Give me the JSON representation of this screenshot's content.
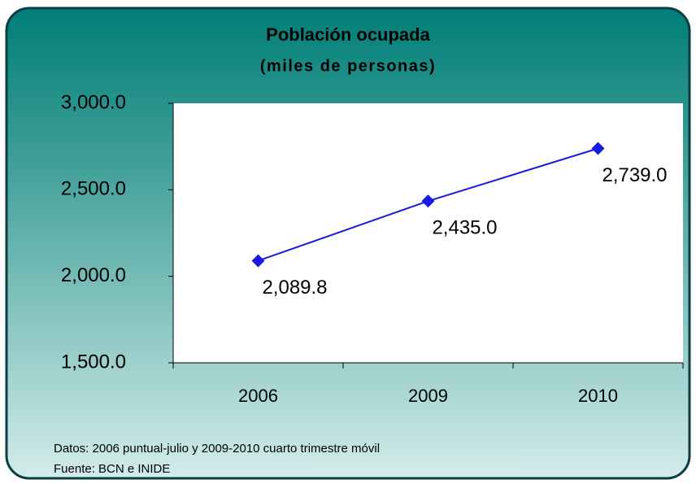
{
  "chart_data": {
    "type": "line",
    "title": "Población ocupada",
    "subtitle": "(miles de personas)",
    "categories": [
      "2006",
      "2009",
      "2010"
    ],
    "series": [
      {
        "name": "Población ocupada",
        "color": "#1a1ae6",
        "values": [
          2089.8,
          2435.0,
          2739.0
        ],
        "value_labels": [
          "2,089.8",
          "2,435.0",
          "2,739.0"
        ]
      }
    ],
    "ylim": [
      1500,
      3000
    ],
    "yticks": [
      {
        "value": 1500,
        "label": "1,500.0"
      },
      {
        "value": 2000,
        "label": "2,000.0"
      },
      {
        "value": 2500,
        "label": "2,500.0"
      },
      {
        "value": 3000,
        "label": "3,000.0"
      }
    ],
    "notes": [
      "Datos: 2006 puntual-julio y 2009-2010 cuarto trimestre móvil",
      "Fuente: BCN e INIDE"
    ]
  }
}
